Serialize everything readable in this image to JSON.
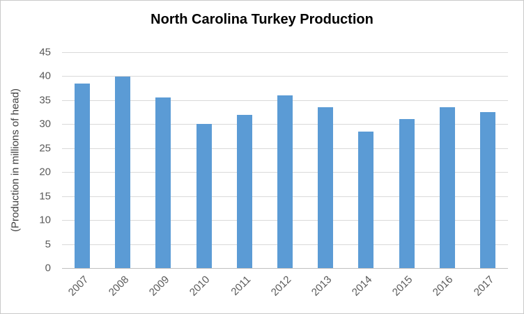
{
  "chart_data": {
    "type": "bar",
    "title": "North Carolina Turkey Production",
    "xlabel": "",
    "ylabel": "(Production in millions of head)",
    "categories": [
      "2007",
      "2008",
      "2009",
      "2010",
      "2011",
      "2012",
      "2013",
      "2014",
      "2015",
      "2016",
      "2017"
    ],
    "values": [
      38.5,
      39.9,
      35.5,
      30.0,
      32.0,
      36.0,
      33.5,
      28.5,
      31.0,
      33.5,
      32.5
    ],
    "ylim": [
      0,
      45
    ],
    "ytick_step": 5,
    "grid": true,
    "legend": "none",
    "bar_color": "#5b9bd5",
    "gridline_color": "#d9d9d9",
    "tick_label_color": "#595959"
  }
}
